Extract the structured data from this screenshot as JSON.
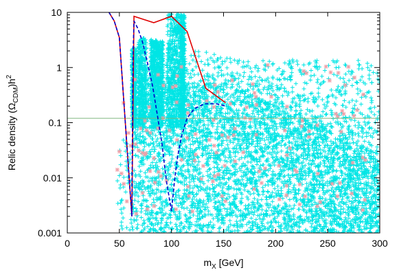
{
  "chart_data": {
    "type": "scatter",
    "title": "",
    "xlabel_main": "m",
    "xlabel_sub": "X",
    "xlabel_unit": " [GeV]",
    "ylabel_prefix": "Relic density (Ω",
    "ylabel_sub": "CDM",
    "ylabel_suffix": ")h",
    "ylabel_sup": "2",
    "xlim": [
      0,
      300
    ],
    "ylim": [
      0.001,
      10
    ],
    "y_scale": "log",
    "x_ticks": [
      "0",
      "50",
      "100",
      "150",
      "200",
      "250",
      "300"
    ],
    "y_ticks": [
      "0.001",
      "0.01",
      "0.1",
      "1",
      "10"
    ],
    "reference_line": {
      "y": 0.12,
      "color": "#7fb87f"
    },
    "grid": false,
    "legend": "none",
    "colors": {
      "cyan": "#00e5e5",
      "pink": "#f0a0a8",
      "red": "#e00000",
      "blue": "#0000cc"
    },
    "series": [
      {
        "style": "solid-line",
        "color": "#e00000",
        "points": [
          [
            40,
            10
          ],
          [
            45,
            7
          ],
          [
            50,
            3.5
          ],
          [
            62,
            0.002
          ],
          [
            64,
            8.5
          ],
          [
            83,
            6.5
          ],
          [
            100,
            8.5
          ],
          [
            115,
            4.5
          ],
          [
            133,
            0.42
          ],
          [
            152,
            0.23
          ]
        ]
      },
      {
        "style": "dashed-line",
        "color": "#0000cc",
        "points": [
          [
            40,
            10
          ],
          [
            45,
            7
          ],
          [
            50,
            3.5
          ],
          [
            62,
            0.002
          ],
          [
            63,
            1.5
          ],
          [
            64,
            7
          ],
          [
            68,
            5
          ],
          [
            72,
            3
          ],
          [
            77,
            1.2
          ],
          [
            82,
            0.45
          ],
          [
            87,
            0.12
          ],
          [
            91,
            0.04
          ],
          [
            95,
            0.009
          ],
          [
            100,
            0.0025
          ],
          [
            103,
            0.009
          ],
          [
            106,
            0.025
          ],
          [
            110,
            0.06
          ],
          [
            115,
            0.12
          ],
          [
            122,
            0.18
          ],
          [
            132,
            0.22
          ],
          [
            143,
            0.22
          ],
          [
            152,
            0.2
          ]
        ]
      }
    ]
  }
}
